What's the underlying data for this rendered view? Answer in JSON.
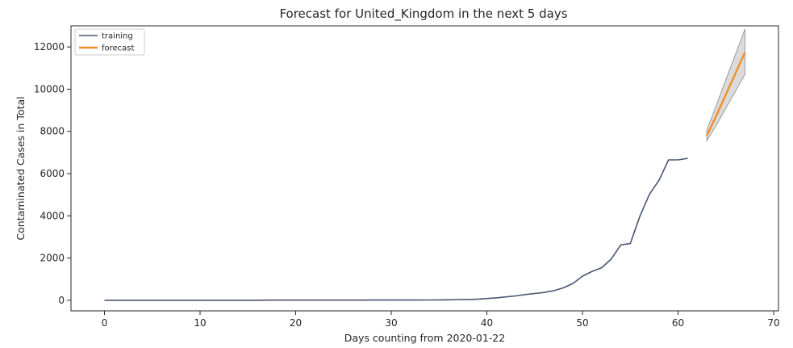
{
  "chart_data": {
    "type": "line",
    "title": "Forecast for United_Kingdom in the next 5 days",
    "xlabel": "Days counting from 2020-01-22",
    "ylabel": "Contaminated Cases in Total",
    "xlim": [
      -3.5,
      70.5
    ],
    "ylim": [
      -500,
      13000
    ],
    "xticks": [
      0,
      10,
      20,
      30,
      40,
      50,
      60,
      70
    ],
    "yticks": [
      0,
      2000,
      4000,
      6000,
      8000,
      10000,
      12000
    ],
    "grid": false,
    "legend_position": "top-left",
    "series": [
      {
        "name": "training",
        "color": "#4a5672",
        "x": [
          0,
          1,
          2,
          3,
          4,
          5,
          6,
          7,
          8,
          9,
          10,
          11,
          12,
          13,
          14,
          15,
          16,
          17,
          18,
          19,
          20,
          21,
          22,
          23,
          24,
          25,
          26,
          27,
          28,
          29,
          30,
          31,
          32,
          33,
          34,
          35,
          36,
          37,
          38,
          39,
          40,
          41,
          42,
          43,
          44,
          45,
          46,
          47,
          48,
          49,
          50,
          51,
          52,
          53,
          54,
          55,
          56,
          57,
          58,
          59,
          60,
          61
        ],
        "y": [
          0,
          0,
          0,
          0,
          0,
          0,
          0,
          0,
          0,
          2,
          2,
          2,
          2,
          2,
          2,
          2,
          2,
          8,
          8,
          9,
          9,
          9,
          9,
          9,
          9,
          9,
          9,
          9,
          13,
          13,
          13,
          13,
          13,
          13,
          16,
          20,
          23,
          36,
          40,
          51,
          85,
          115,
          163,
          206,
          273,
          321,
          373,
          456,
          590,
          798,
          1140,
          1372,
          1543,
          1950,
          2626,
          2689,
          3983,
          5018,
          5683,
          6650,
          6650,
          6726
        ],
        "y_override_note": ""
      },
      {
        "name": "forecast",
        "color": "#f28e2b",
        "x": [
          63,
          64,
          65,
          66,
          67
        ],
        "y": [
          7800,
          8750,
          9750,
          10750,
          11750
        ],
        "lower": [
          7550,
          8300,
          9100,
          9900,
          10700
        ],
        "upper": [
          8050,
          9250,
          10450,
          11650,
          12850
        ]
      }
    ]
  }
}
